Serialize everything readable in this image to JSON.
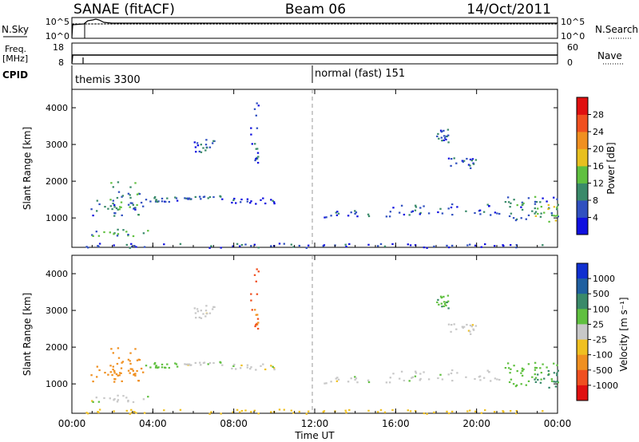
{
  "header": {
    "title": "SANAE (fitACF)",
    "beam": "Beam 06",
    "date": "14/Oct/2011"
  },
  "top_panels": {
    "nsky_label": "N.Sky",
    "nsky_ticks": [
      "10^5",
      "10^0"
    ],
    "nsearch_label": "N.Search",
    "nsearch_ticks": [
      "10^5",
      "10^0"
    ],
    "freq_label": "Freq.",
    "freq_unit": "[MHz]",
    "freq_ticks": [
      "18",
      "8"
    ],
    "nave_label": "Nave",
    "nave_ticks": [
      "60",
      "0"
    ],
    "cpid_label": "CPID",
    "cpid_entries": [
      "themis 3300",
      "normal (fast) 151"
    ]
  },
  "chart_data": [
    {
      "type": "heatmap",
      "name": "power",
      "xlabel": "Time UT",
      "ylabel": "Slant Range [km]",
      "x_ticks": [
        "00:00",
        "04:00",
        "08:00",
        "12:00",
        "16:00",
        "20:00",
        "00:00"
      ],
      "xlim_hours": [
        0,
        24
      ],
      "y_ticks": [
        1000,
        2000,
        3000,
        4000
      ],
      "ylim": [
        200,
        4500
      ],
      "colorbar_label": "Power [dB]",
      "colorbar_ticks": [
        4,
        8,
        12,
        16,
        20,
        24,
        28
      ],
      "colorbar_colors": [
        "#1010e0",
        "#3050c0",
        "#3a8a6a",
        "#60c040",
        "#e8c020",
        "#f09020",
        "#f05020",
        "#e01010"
      ],
      "regions": [
        {
          "t0": 0.8,
          "t1": 3.5,
          "r0": 1050,
          "r1": 1500,
          "v": 8
        },
        {
          "t0": 1.8,
          "t1": 3.4,
          "r0": 1250,
          "r1": 2000,
          "v": 10
        },
        {
          "t0": 0.9,
          "t1": 3.8,
          "r0": 520,
          "r1": 720,
          "v": 10
        },
        {
          "t0": 3.6,
          "t1": 5.2,
          "r0": 1450,
          "r1": 1620,
          "v": 6
        },
        {
          "t0": 5.5,
          "t1": 7.4,
          "r0": 1520,
          "r1": 1620,
          "v": 6
        },
        {
          "t0": 6.0,
          "t1": 7.0,
          "r0": 2800,
          "r1": 3150,
          "v": 6
        },
        {
          "t0": 7.5,
          "t1": 10.2,
          "r0": 1380,
          "r1": 1560,
          "v": 5
        },
        {
          "t0": 8.8,
          "t1": 9.2,
          "r0": 2500,
          "r1": 4300,
          "v": 6
        },
        {
          "t0": 12.3,
          "t1": 15.8,
          "r0": 1020,
          "r1": 1220,
          "v": 5
        },
        {
          "t0": 15.8,
          "t1": 21.2,
          "r0": 1100,
          "r1": 1400,
          "v": 6
        },
        {
          "t0": 18.0,
          "t1": 18.6,
          "r0": 3050,
          "r1": 3450,
          "v": 6
        },
        {
          "t0": 18.5,
          "t1": 20.2,
          "r0": 2350,
          "r1": 2650,
          "v": 6
        },
        {
          "t0": 21.2,
          "t1": 24.0,
          "r0": 950,
          "r1": 1600,
          "v": 8
        },
        {
          "t0": 22.8,
          "t1": 24.0,
          "r0": 900,
          "r1": 1400,
          "v": 14
        },
        {
          "t0": 0.5,
          "t1": 24.0,
          "r0": 200,
          "r1": 330,
          "v": 5
        }
      ]
    },
    {
      "type": "heatmap",
      "name": "velocity",
      "xlabel": "Time UT",
      "ylabel": "Slant Range [km]",
      "x_ticks": [
        "00:00",
        "04:00",
        "08:00",
        "12:00",
        "16:00",
        "20:00",
        "00:00"
      ],
      "xlim_hours": [
        0,
        24
      ],
      "y_ticks": [
        1000,
        2000,
        3000,
        4000
      ],
      "ylim": [
        200,
        4500
      ],
      "colorbar_label": "Velocity [m s⁻¹]",
      "colorbar_ticks": [
        1000,
        500,
        100,
        25,
        -25,
        -100,
        -500,
        -1000
      ],
      "colorbar_colors": [
        "#1030d0",
        "#2060a0",
        "#3a8a6a",
        "#60c040",
        "#c8c8c8",
        "#f0c020",
        "#f09020",
        "#f05020",
        "#e01010"
      ],
      "regions": [
        {
          "t0": 0.8,
          "t1": 3.5,
          "r0": 1050,
          "r1": 1500,
          "v": -300
        },
        {
          "t0": 1.8,
          "t1": 3.4,
          "r0": 1250,
          "r1": 2000,
          "v": -200
        },
        {
          "t0": 0.9,
          "t1": 3.8,
          "r0": 520,
          "r1": 720,
          "v": 0
        },
        {
          "t0": 3.6,
          "t1": 5.2,
          "r0": 1450,
          "r1": 1620,
          "v": 60
        },
        {
          "t0": 5.5,
          "t1": 7.4,
          "r0": 1520,
          "r1": 1620,
          "v": 0
        },
        {
          "t0": 6.0,
          "t1": 7.0,
          "r0": 2800,
          "r1": 3150,
          "v": 0
        },
        {
          "t0": 7.5,
          "t1": 10.2,
          "r0": 1380,
          "r1": 1560,
          "v": 0
        },
        {
          "t0": 8.8,
          "t1": 9.2,
          "r0": 2500,
          "r1": 4300,
          "v": -600
        },
        {
          "t0": 12.3,
          "t1": 15.8,
          "r0": 1020,
          "r1": 1220,
          "v": 0
        },
        {
          "t0": 15.8,
          "t1": 21.2,
          "r0": 1100,
          "r1": 1400,
          "v": 0
        },
        {
          "t0": 18.0,
          "t1": 18.6,
          "r0": 3050,
          "r1": 3450,
          "v": 80
        },
        {
          "t0": 18.5,
          "t1": 20.2,
          "r0": 2350,
          "r1": 2650,
          "v": 0
        },
        {
          "t0": 21.2,
          "t1": 24.0,
          "r0": 950,
          "r1": 1600,
          "v": 60
        },
        {
          "t0": 22.8,
          "t1": 24.0,
          "r0": 900,
          "r1": 1400,
          "v": 150
        },
        {
          "t0": 0.5,
          "t1": 24.0,
          "r0": 200,
          "r1": 330,
          "v": -60
        }
      ]
    }
  ]
}
